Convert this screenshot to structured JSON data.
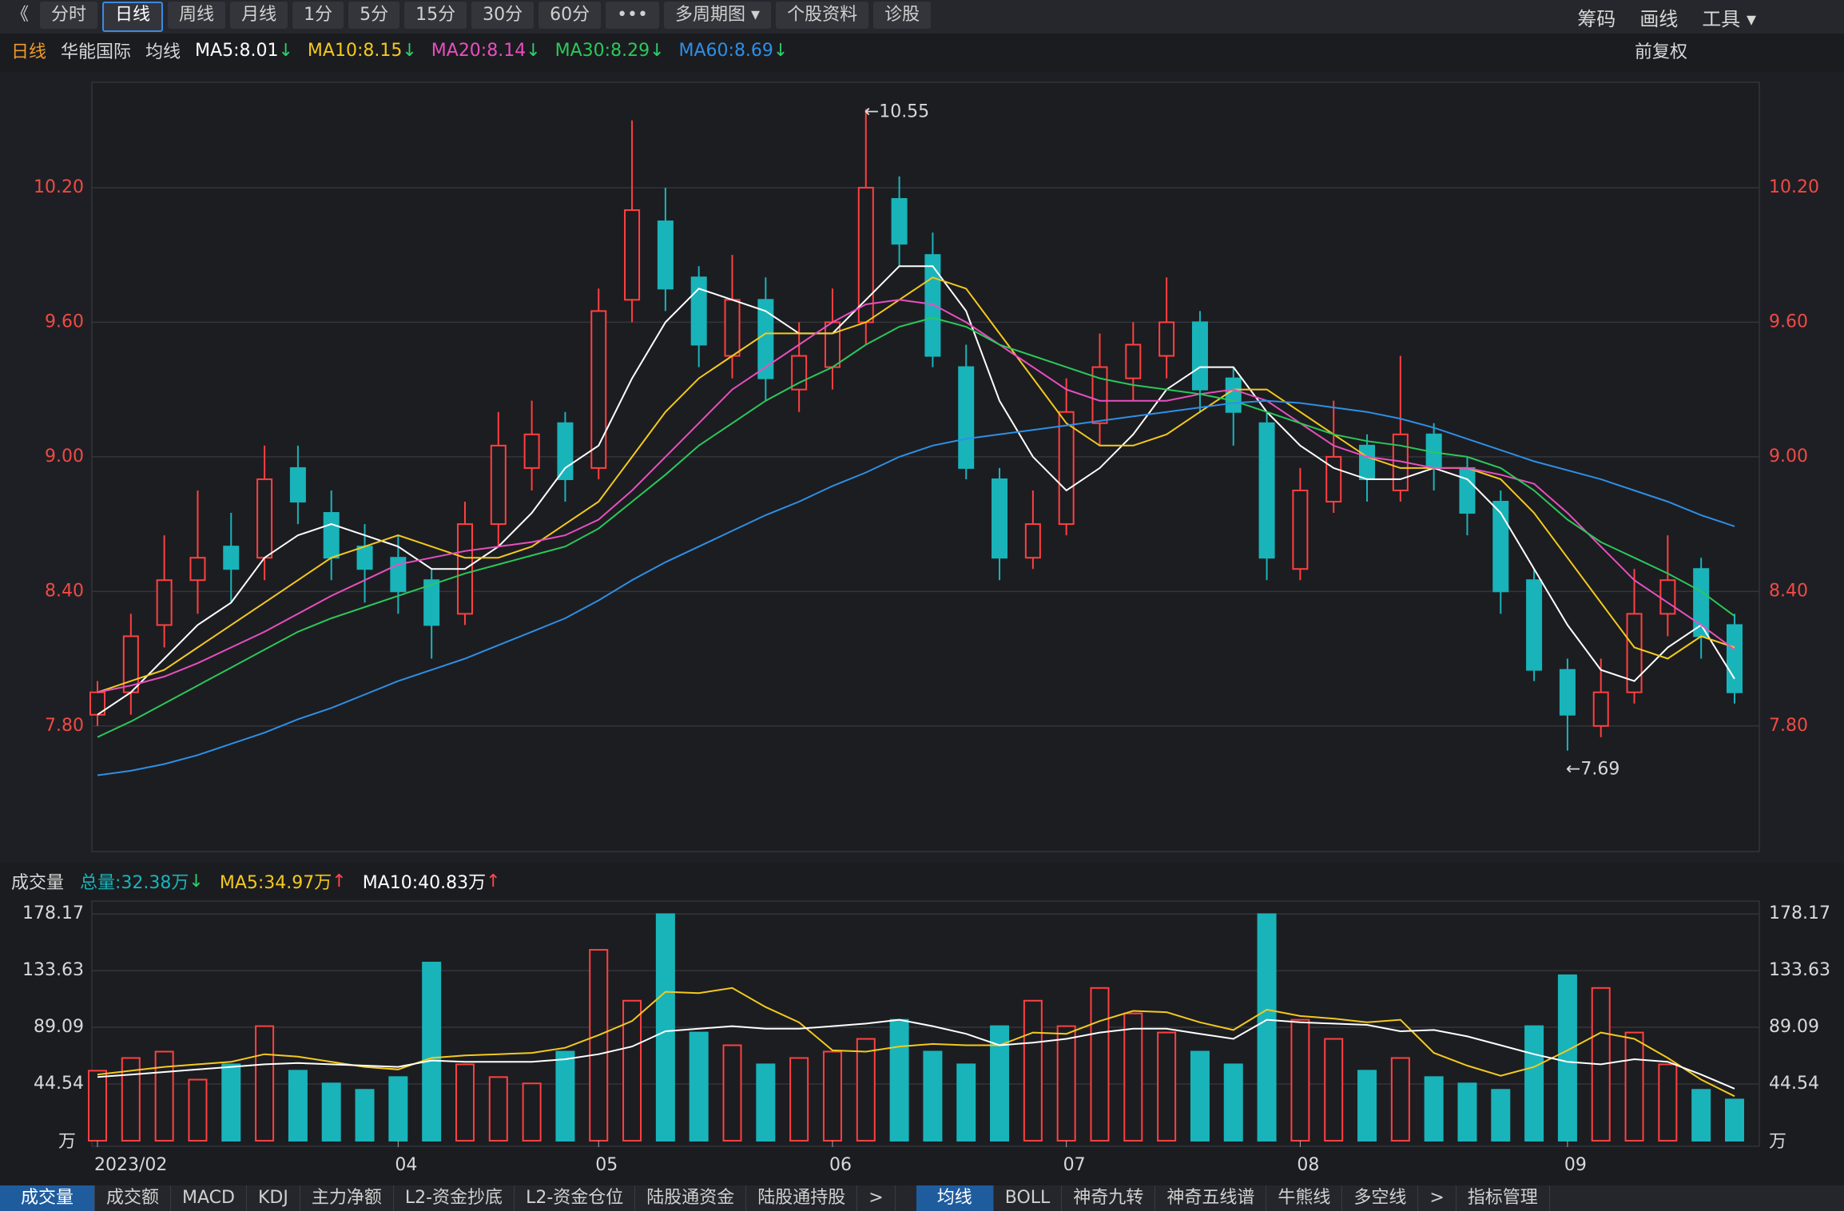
{
  "toolbar": {
    "left": [
      "《",
      "分时",
      "日线",
      "周线",
      "月线",
      "1分",
      "5分",
      "15分",
      "30分",
      "60分",
      "•••",
      "多周期图 ▾",
      "个股资料",
      "诊股"
    ],
    "right": [
      "筹码",
      "画线",
      "工具 ▾"
    ]
  },
  "legend": {
    "period": "日线",
    "stock": "华能国际",
    "ma_title": "均线",
    "adjust": "前复权"
  },
  "volume_header": {
    "title": "成交量",
    "items": [
      {
        "label": "总量:32.38万",
        "trend": "↓",
        "color": "#19b4ba",
        "trend_color": "#2bd26b"
      },
      {
        "label": "MA5:34.97万",
        "trend": "↑",
        "color": "#f4c91e",
        "trend_color": "#ff4a4a"
      },
      {
        "label": "MA10:40.83万",
        "trend": "↑",
        "color": "#ffffff",
        "trend_color": "#ff4a4a"
      }
    ]
  },
  "tabs": {
    "left": [
      "成交量",
      "成交额",
      "MACD",
      "KDJ",
      "主力净额",
      "L2-资金抄底",
      "L2-资金仓位",
      "陆股通资金",
      "陆股通持股",
      ">"
    ],
    "right": [
      "均线",
      "BOLL",
      "神奇九转",
      "神奇五线谱",
      "牛熊线",
      "多空线",
      ">",
      "指标管理"
    ]
  },
  "chart_data": [
    {
      "type": "candlestick",
      "ylim": [
        7.24,
        10.67
      ],
      "yticks": [
        {
          "value": 7.8,
          "label": "7.80"
        },
        {
          "value": 8.4,
          "label": "8.40"
        },
        {
          "value": 9.0,
          "label": "9.00"
        },
        {
          "value": 9.6,
          "label": "9.60"
        },
        {
          "value": 10.2,
          "label": "10.20"
        }
      ],
      "grid": true,
      "up_color": "#ff4040",
      "down_color": "#19b4ba",
      "annotations": {
        "high": "←10.55",
        "low": "←7.69"
      },
      "open": [
        7.85,
        7.95,
        8.25,
        8.45,
        8.6,
        8.55,
        8.95,
        8.75,
        8.6,
        8.55,
        8.45,
        8.3,
        8.7,
        8.95,
        9.15,
        8.95,
        9.7,
        10.05,
        9.8,
        9.45,
        9.7,
        9.3,
        9.4,
        9.6,
        10.15,
        9.9,
        9.4,
        8.9,
        8.55,
        8.7,
        9.15,
        9.35,
        9.45,
        9.6,
        9.35,
        9.15,
        8.5,
        8.8,
        9.05,
        8.85,
        9.1,
        8.95,
        8.8,
        8.45,
        8.05,
        7.8,
        7.95,
        8.3,
        8.5,
        8.25
      ],
      "high": [
        8.0,
        8.3,
        8.65,
        8.85,
        8.75,
        9.05,
        9.05,
        8.85,
        8.7,
        8.65,
        8.5,
        8.8,
        9.2,
        9.25,
        9.2,
        9.75,
        10.5,
        10.2,
        9.85,
        9.9,
        9.8,
        9.6,
        9.75,
        10.55,
        10.25,
        10.0,
        9.5,
        8.95,
        8.85,
        9.35,
        9.55,
        9.6,
        9.8,
        9.65,
        9.4,
        9.2,
        8.95,
        9.25,
        9.1,
        9.45,
        9.15,
        9.0,
        8.85,
        8.5,
        8.1,
        8.1,
        8.5,
        8.65,
        8.55,
        8.3
      ],
      "low": [
        7.8,
        7.85,
        8.15,
        8.3,
        8.35,
        8.45,
        8.7,
        8.45,
        8.35,
        8.3,
        8.1,
        8.25,
        8.6,
        8.85,
        8.8,
        8.9,
        9.6,
        9.65,
        9.4,
        9.35,
        9.25,
        9.2,
        9.3,
        9.5,
        9.85,
        9.4,
        8.9,
        8.45,
        8.5,
        8.65,
        9.05,
        9.25,
        9.35,
        9.2,
        9.05,
        8.45,
        8.45,
        8.75,
        8.8,
        8.8,
        8.85,
        8.65,
        8.3,
        8.0,
        7.69,
        7.75,
        7.9,
        8.2,
        8.1,
        7.9
      ],
      "close": [
        7.95,
        8.2,
        8.45,
        8.55,
        8.5,
        8.9,
        8.8,
        8.55,
        8.5,
        8.4,
        8.25,
        8.7,
        9.05,
        9.1,
        8.9,
        9.65,
        10.1,
        9.75,
        9.5,
        9.7,
        9.35,
        9.45,
        9.6,
        10.2,
        9.95,
        9.45,
        8.95,
        8.55,
        8.7,
        9.2,
        9.4,
        9.5,
        9.6,
        9.3,
        9.2,
        8.55,
        8.85,
        9.0,
        8.9,
        9.1,
        8.95,
        8.75,
        8.4,
        8.05,
        7.85,
        7.95,
        8.3,
        8.45,
        8.2,
        7.95
      ],
      "series": [
        {
          "name": "MA5:8.01",
          "trend": "↓",
          "color": "#ffffff",
          "trend_color": "#2bd26b",
          "values": [
            7.85,
            7.95,
            8.1,
            8.25,
            8.35,
            8.55,
            8.65,
            8.7,
            8.65,
            8.6,
            8.5,
            8.5,
            8.6,
            8.75,
            8.95,
            9.05,
            9.35,
            9.6,
            9.75,
            9.7,
            9.65,
            9.55,
            9.55,
            9.7,
            9.85,
            9.85,
            9.65,
            9.25,
            9.0,
            8.85,
            8.95,
            9.1,
            9.3,
            9.4,
            9.4,
            9.2,
            9.05,
            8.95,
            8.9,
            8.9,
            8.95,
            8.9,
            8.75,
            8.5,
            8.25,
            8.05,
            8.0,
            8.15,
            8.25,
            8.01
          ]
        },
        {
          "name": "MA10:8.15",
          "trend": "↓",
          "color": "#f4c91e",
          "trend_color": "#2bd26b",
          "values": [
            7.95,
            8.0,
            8.05,
            8.15,
            8.25,
            8.35,
            8.45,
            8.55,
            8.6,
            8.65,
            8.6,
            8.55,
            8.55,
            8.6,
            8.7,
            8.8,
            9.0,
            9.2,
            9.35,
            9.45,
            9.55,
            9.55,
            9.55,
            9.6,
            9.7,
            9.8,
            9.75,
            9.55,
            9.35,
            9.15,
            9.05,
            9.05,
            9.1,
            9.2,
            9.3,
            9.3,
            9.2,
            9.1,
            9.0,
            8.95,
            8.95,
            8.95,
            8.9,
            8.75,
            8.55,
            8.35,
            8.15,
            8.1,
            8.2,
            8.15
          ]
        },
        {
          "name": "MA20:8.14",
          "trend": "↓",
          "color": "#e84fbe",
          "trend_color": "#2bd26b",
          "values": [
            7.95,
            7.98,
            8.02,
            8.08,
            8.15,
            8.22,
            8.3,
            8.38,
            8.45,
            8.52,
            8.55,
            8.58,
            8.6,
            8.62,
            8.65,
            8.72,
            8.85,
            9.0,
            9.15,
            9.3,
            9.4,
            9.5,
            9.6,
            9.68,
            9.7,
            9.68,
            9.6,
            9.5,
            9.4,
            9.3,
            9.25,
            9.25,
            9.25,
            9.28,
            9.3,
            9.25,
            9.15,
            9.05,
            9.0,
            8.98,
            8.95,
            8.95,
            8.92,
            8.88,
            8.75,
            8.6,
            8.45,
            8.35,
            8.25,
            8.14
          ]
        },
        {
          "name": "MA30:8.29",
          "trend": "↓",
          "color": "#2bc85a",
          "trend_color": "#2bd26b",
          "values": [
            7.75,
            7.82,
            7.9,
            7.98,
            8.06,
            8.14,
            8.22,
            8.28,
            8.33,
            8.38,
            8.43,
            8.48,
            8.52,
            8.56,
            8.6,
            8.68,
            8.8,
            8.92,
            9.05,
            9.15,
            9.25,
            9.33,
            9.4,
            9.5,
            9.58,
            9.62,
            9.58,
            9.5,
            9.45,
            9.4,
            9.35,
            9.32,
            9.3,
            9.28,
            9.25,
            9.2,
            9.15,
            9.1,
            9.07,
            9.05,
            9.02,
            9.0,
            8.95,
            8.85,
            8.72,
            8.62,
            8.55,
            8.48,
            8.4,
            8.29
          ]
        },
        {
          "name": "MA60:8.69",
          "trend": "↓",
          "color": "#2e8fe6",
          "trend_color": "#2bd26b",
          "values": [
            7.58,
            7.6,
            7.63,
            7.67,
            7.72,
            7.77,
            7.83,
            7.88,
            7.94,
            8.0,
            8.05,
            8.1,
            8.16,
            8.22,
            8.28,
            8.36,
            8.45,
            8.53,
            8.6,
            8.67,
            8.74,
            8.8,
            8.87,
            8.93,
            9.0,
            9.05,
            9.08,
            9.1,
            9.12,
            9.14,
            9.16,
            9.18,
            9.2,
            9.22,
            9.24,
            9.25,
            9.24,
            9.22,
            9.2,
            9.17,
            9.13,
            9.08,
            9.03,
            8.98,
            8.94,
            8.9,
            8.85,
            8.8,
            8.74,
            8.69
          ]
        }
      ]
    },
    {
      "type": "bar",
      "categories": [
        "2023/02",
        null,
        null,
        null,
        null,
        null,
        null,
        null,
        null,
        "04",
        null,
        null,
        null,
        null,
        null,
        "05",
        null,
        null,
        null,
        null,
        null,
        null,
        "06",
        null,
        null,
        null,
        null,
        null,
        null,
        "07",
        null,
        null,
        null,
        null,
        null,
        null,
        "08",
        null,
        null,
        null,
        null,
        null,
        null,
        null,
        "09",
        null,
        null,
        null,
        null,
        null
      ],
      "ylim": [
        0,
        188.3
      ],
      "yticks": [
        44.54,
        89.09,
        133.63,
        178.17
      ],
      "unit": "万",
      "grid": true,
      "values": [
        55,
        65,
        70,
        48,
        60,
        90,
        55,
        45,
        40,
        50,
        140,
        60,
        50,
        45,
        70,
        150,
        110,
        178,
        85,
        75,
        60,
        65,
        70,
        80,
        95,
        70,
        60,
        90,
        110,
        90,
        120,
        100,
        85,
        70,
        60,
        178,
        95,
        80,
        55,
        65,
        50,
        45,
        40,
        90,
        130,
        120,
        85,
        60,
        40,
        32.38
      ],
      "series": [
        {
          "name": "MA5",
          "color": "#f4c91e",
          "values": [
            52,
            55,
            58,
            60,
            62,
            68,
            66,
            62,
            58,
            56,
            65,
            67,
            68,
            69,
            73,
            83,
            94,
            117,
            116,
            120,
            105,
            93,
            71,
            70,
            74,
            76,
            75,
            75,
            85,
            84,
            94,
            102,
            101,
            93,
            87,
            103,
            98,
            96,
            93,
            95,
            69,
            59,
            51,
            58,
            71,
            85,
            80,
            65,
            48,
            34.97
          ]
        },
        {
          "name": "MA10",
          "color": "#ffffff",
          "values": [
            50,
            52,
            54,
            56,
            58,
            60,
            61,
            60,
            59,
            58,
            63,
            62,
            62,
            62,
            64,
            68,
            74,
            86,
            88,
            90,
            88,
            88,
            90,
            92,
            95,
            90,
            84,
            75,
            77,
            80,
            85,
            88,
            88,
            84,
            80,
            95,
            93,
            92,
            91,
            86,
            87,
            82,
            75,
            68,
            62,
            60,
            64,
            62,
            52,
            40.83
          ]
        }
      ]
    }
  ]
}
